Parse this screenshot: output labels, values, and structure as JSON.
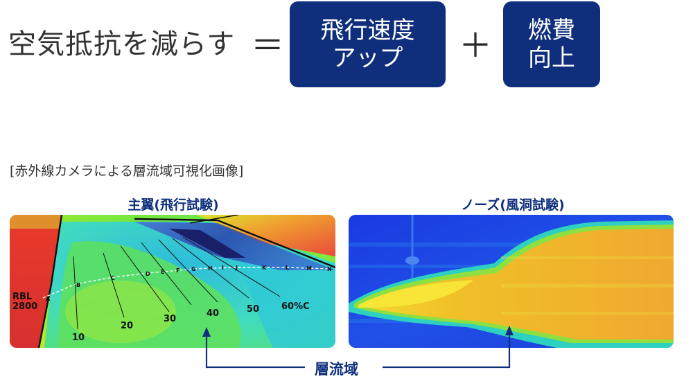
{
  "equation": {
    "lhs": "空気抵抗を減らす",
    "equals": "＝",
    "plus": "＋",
    "box1": {
      "line1": "飛行速度",
      "line2": "アップ"
    },
    "box2": {
      "line1": "燃費",
      "line2": "向上"
    }
  },
  "caption": "[赤外線カメラによる層流域可視化画像]",
  "panels": {
    "wing": {
      "title": "主翼(飛行試験)",
      "rbl": "RBL",
      "rbl_value": "2800",
      "station_labels": [
        "A",
        "B",
        "C",
        "D",
        "E",
        "F",
        "G",
        "H",
        "I",
        "J",
        "K",
        "L",
        "M",
        "N"
      ],
      "chord_labels": [
        "10",
        "20",
        "30",
        "40",
        "50",
        "60%C"
      ]
    },
    "nose": {
      "title": "ノーズ(風洞試験)"
    }
  },
  "laminar_label": "層流域",
  "colors": {
    "brand_blue": "#0f2f7d"
  }
}
